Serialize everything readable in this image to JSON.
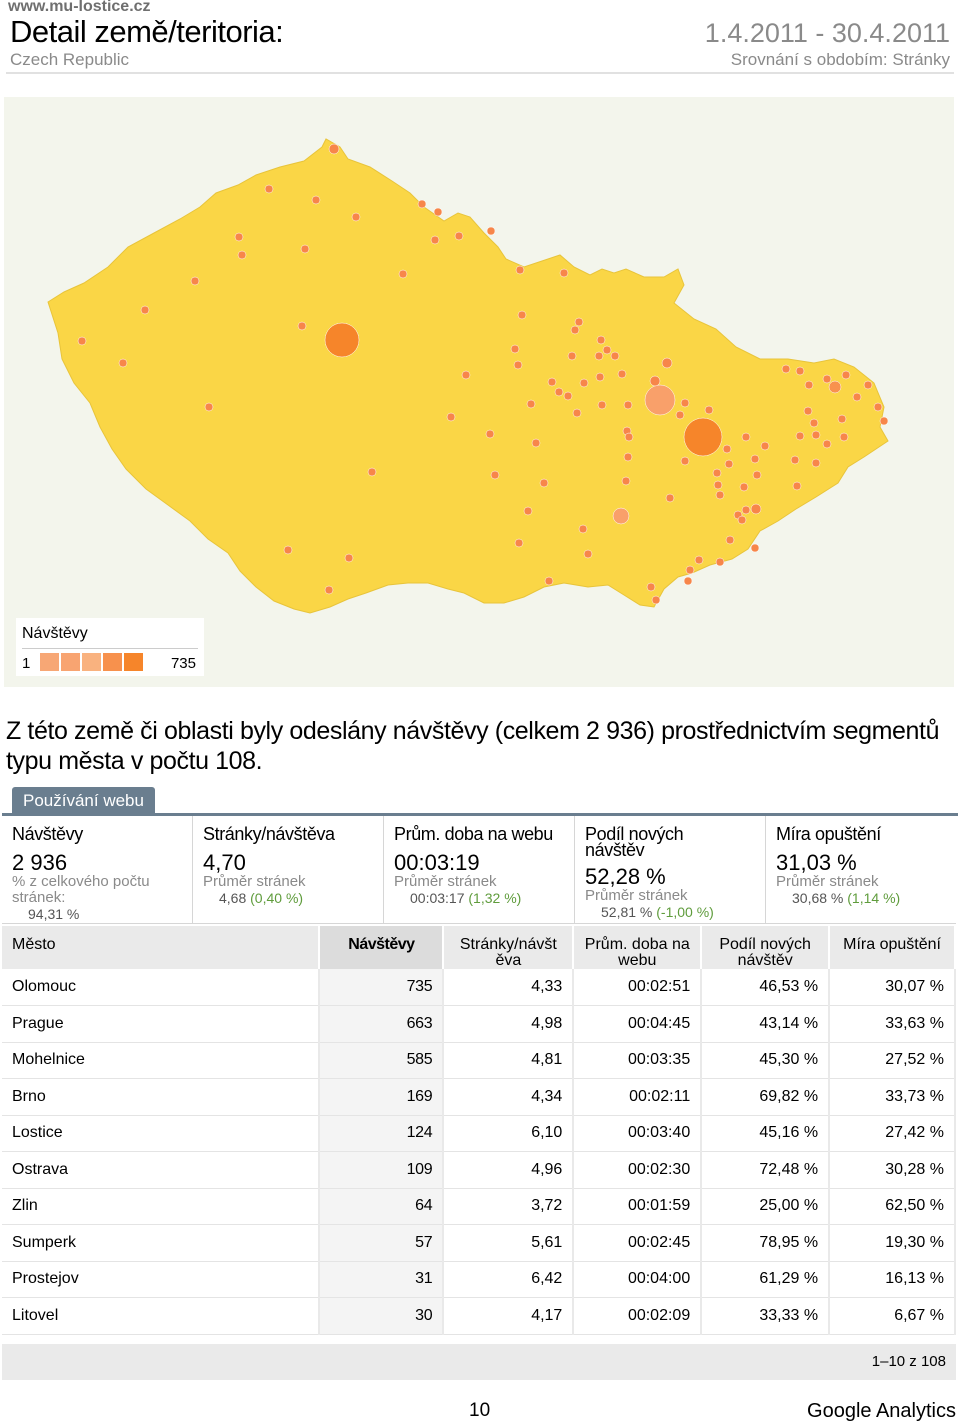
{
  "header": {
    "site": "www.mu-lostice.cz",
    "title": "Detail země/teritoria:",
    "country": "Czech Republic",
    "date_range": "1.4.2011 - 30.4.2011",
    "comparison": "Srovnání s obdobím: Stránky"
  },
  "map": {
    "legend_title": "Návštěvy",
    "legend_min": "1",
    "legend_max": "735",
    "fill_color": "#fad646",
    "dot_color": "#f7864a",
    "legend_colors": [
      "#f7a775",
      "#f8a471",
      "#f9b27f",
      "#f7914d",
      "#f6852a"
    ]
  },
  "summary": "Z této země či oblasti byly odeslány návštěvy (celkem 2 936) prostřednictvím segmentů typu města v počtu 108.",
  "tab_label": "Používání webu",
  "metrics": [
    {
      "label": "Návštěvy",
      "value": "2 936",
      "sub": "% z celkového počtu stránek:",
      "avg": "94,31 %",
      "chg": ""
    },
    {
      "label": "Stránky/návštěva",
      "value": "4,70",
      "sub": "Průměr stránek",
      "avg": "4,68",
      "chg": "(0,40 %)"
    },
    {
      "label": "Prům. doba na webu",
      "value": "00:03:19",
      "sub": "Průměr stránek",
      "avg": "00:03:17",
      "chg": "(1,32 %)"
    },
    {
      "label": "Podíl nových návštěv",
      "value": "52,28 %",
      "sub": "Průměr stránek",
      "avg": "52,81 %",
      "chg": "(-1,00 %)"
    },
    {
      "label": "Míra opuštění",
      "value": "31,03 %",
      "sub": "Průměr stránek",
      "avg": "30,68 %",
      "chg": "(1,14 %)"
    }
  ],
  "table": {
    "headers": [
      "Město",
      "Návštěvy",
      "Stránky/návšt ěva",
      "Prům. doba na webu",
      "Podíl nových návštěv",
      "Míra opuštění"
    ],
    "rows": [
      [
        "Olomouc",
        "735",
        "4,33",
        "00:02:51",
        "46,53 %",
        "30,07 %"
      ],
      [
        "Prague",
        "663",
        "4,98",
        "00:04:45",
        "43,14 %",
        "33,63 %"
      ],
      [
        "Mohelnice",
        "585",
        "4,81",
        "00:03:35",
        "45,30 %",
        "27,52 %"
      ],
      [
        "Brno",
        "169",
        "4,34",
        "00:02:11",
        "69,82 %",
        "33,73 %"
      ],
      [
        "Lostice",
        "124",
        "6,10",
        "00:03:40",
        "45,16 %",
        "27,42 %"
      ],
      [
        "Ostrava",
        "109",
        "4,96",
        "00:02:30",
        "72,48 %",
        "30,28 %"
      ],
      [
        "Zlin",
        "64",
        "3,72",
        "00:01:59",
        "25,00 %",
        "62,50 %"
      ],
      [
        "Sumperk",
        "57",
        "5,61",
        "00:02:45",
        "78,95 %",
        "19,30 %"
      ],
      [
        "Prostejov",
        "31",
        "6,42",
        "00:04:00",
        "61,29 %",
        "16,13 %"
      ],
      [
        "Litovel",
        "30",
        "4,17",
        "00:02:09",
        "33,33 %",
        "6,67 %"
      ]
    ],
    "pager": "1–10 z 108"
  },
  "footer": {
    "page": "10",
    "brand": "Google Analytics"
  }
}
